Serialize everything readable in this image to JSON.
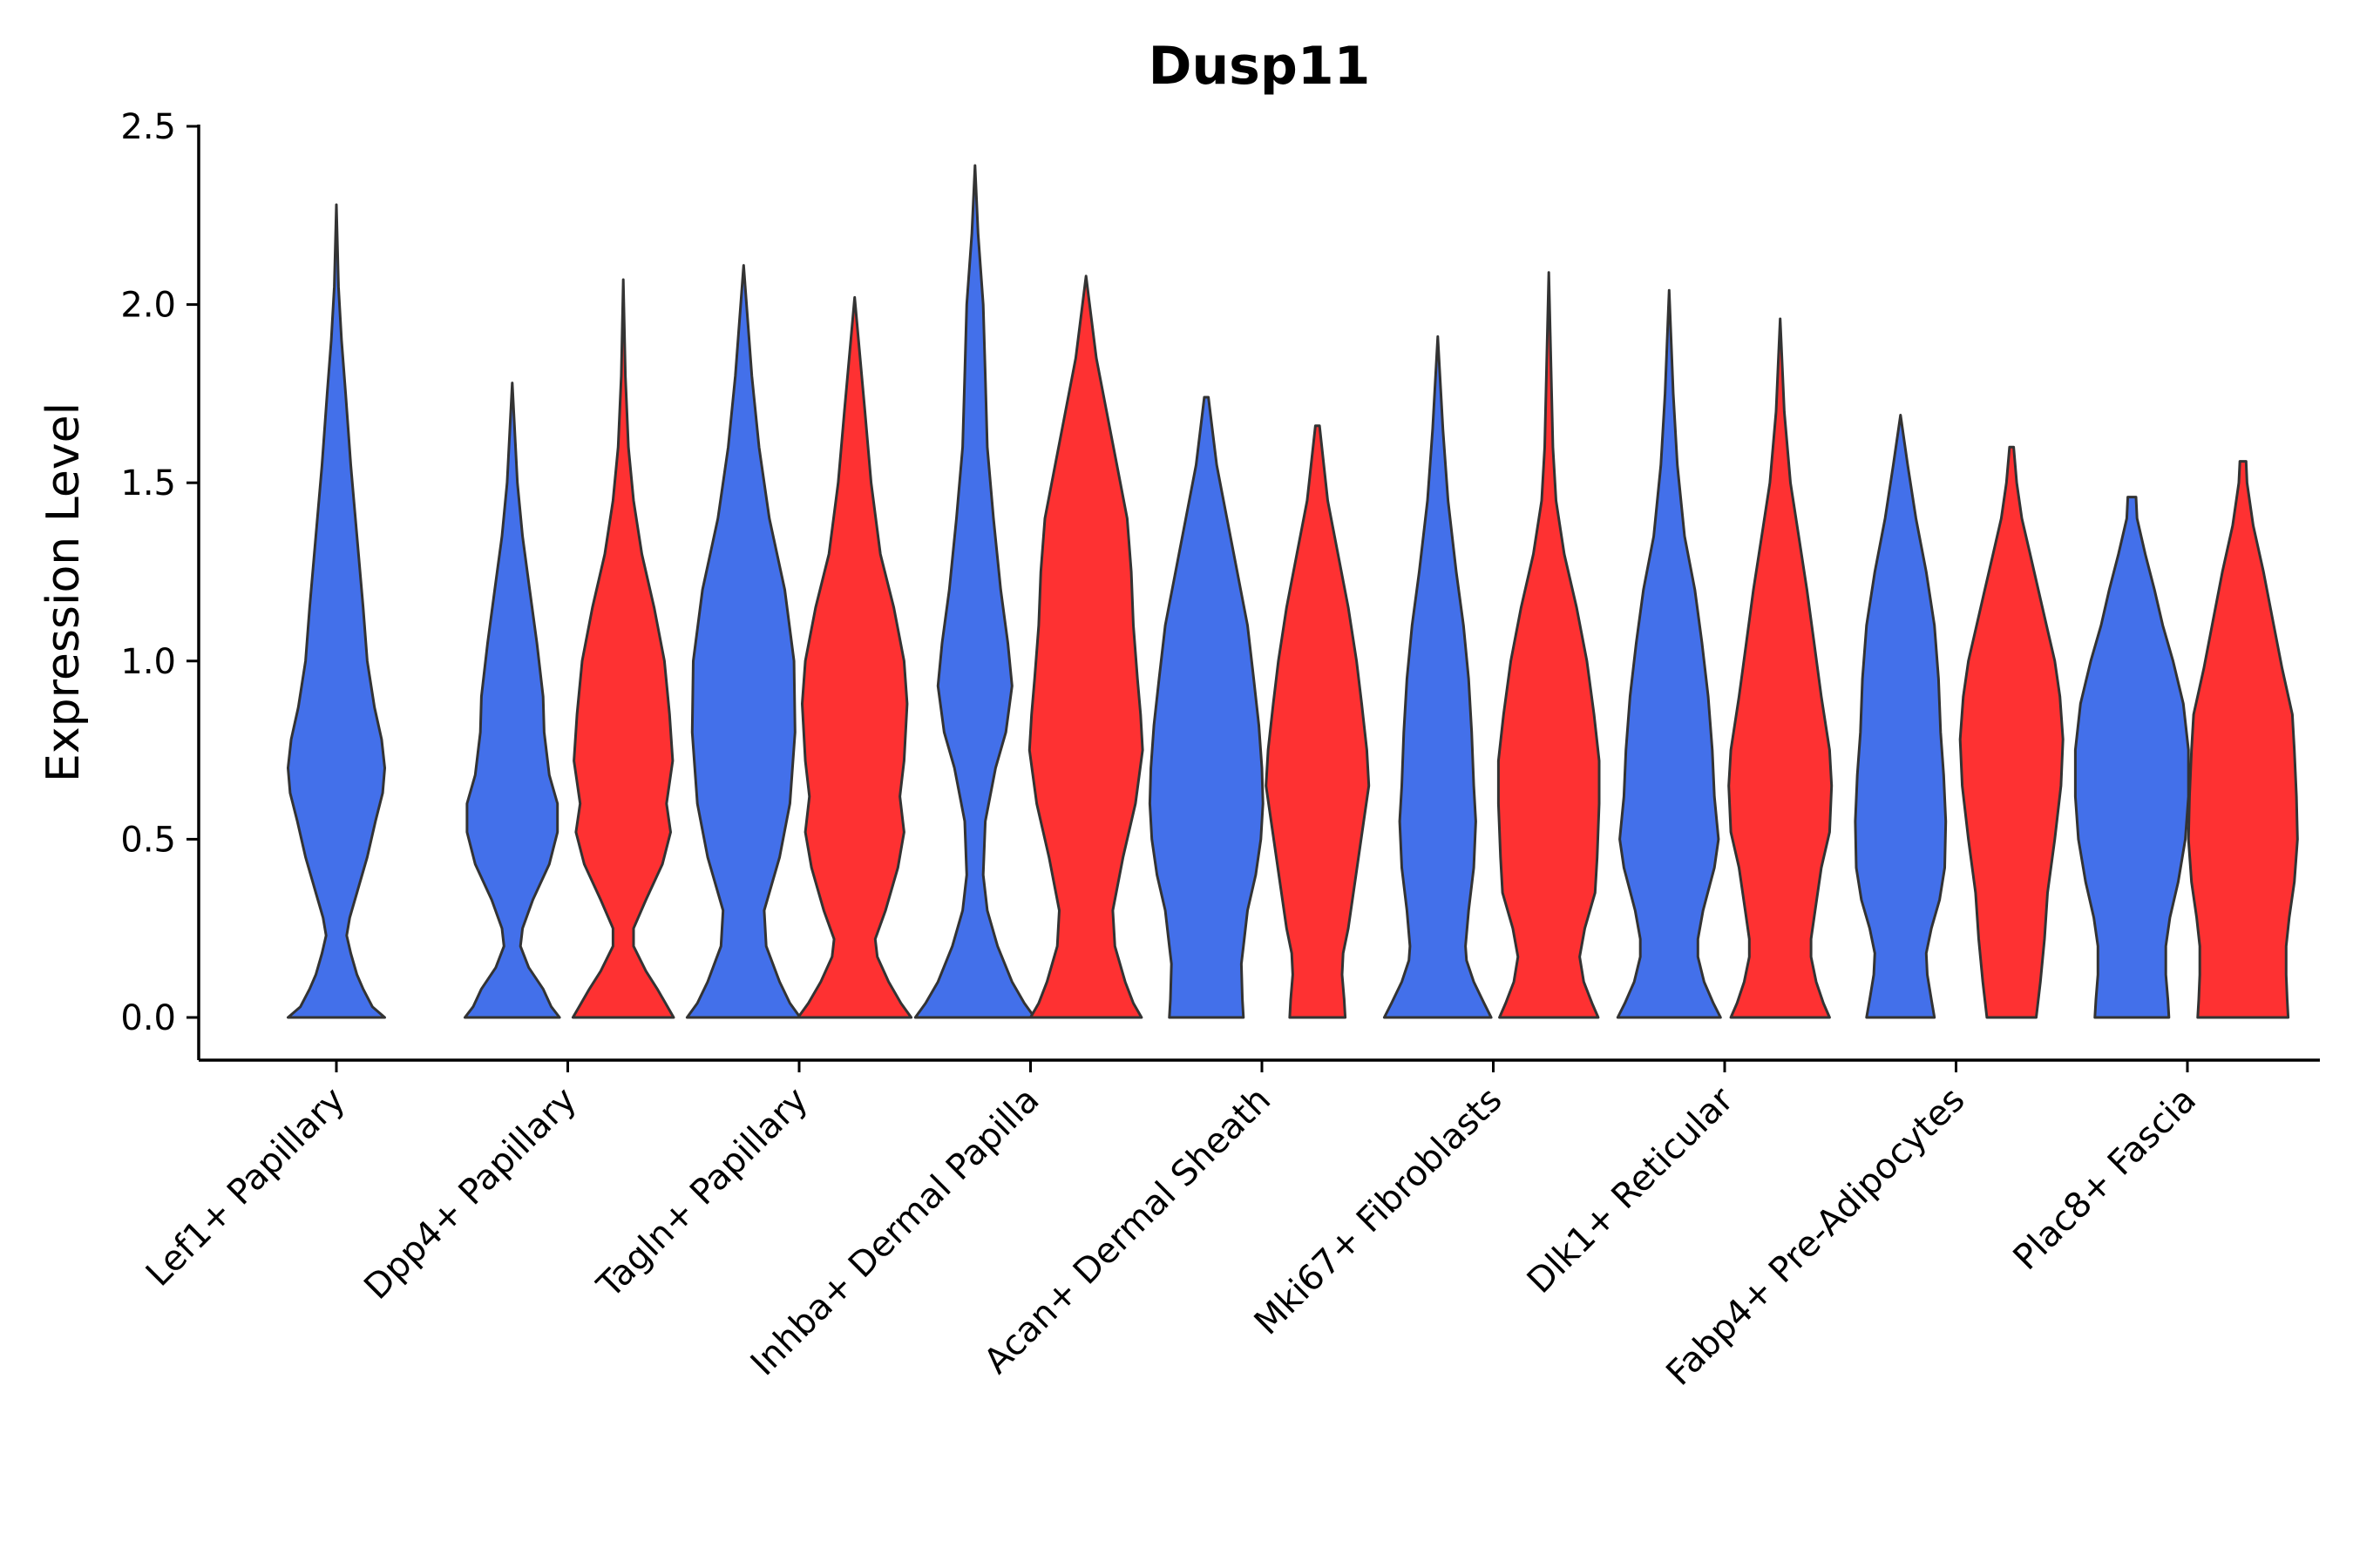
{
  "chart_data": {
    "type": "violin",
    "title": "Dusp11",
    "ylabel": "Expression Level",
    "xlabel": "",
    "ylim": [
      -0.12,
      2.5
    ],
    "yticks": [
      "0.0",
      "0.5",
      "1.0",
      "1.5",
      "2.0",
      "2.5"
    ],
    "categories": [
      "Lef1+ Papillary",
      "Dpp4+ Papillary",
      "Tagln+ Papillary",
      "Inhba+ Dermal Papilla",
      "Acan+ Dermal Sheath",
      "Mki67+ Fibroblasts",
      "Dlk1+ Reticular",
      "Fabp4+ Pre-Adipocytes",
      "Plac8+ Fascia"
    ],
    "colors": {
      "blue": "#4370ea",
      "red": "#fe3132"
    },
    "violins": [
      {
        "category": 0,
        "offset": 0,
        "color": "blue",
        "max": 2.28,
        "profile": [
          [
            0,
            0.47
          ],
          [
            0.03,
            0.35
          ],
          [
            0.08,
            0.26
          ],
          [
            0.12,
            0.2
          ],
          [
            0.18,
            0.14
          ],
          [
            0.23,
            0.1
          ],
          [
            0.28,
            0.13
          ],
          [
            0.35,
            0.2
          ],
          [
            0.45,
            0.3
          ],
          [
            0.55,
            0.38
          ],
          [
            0.63,
            0.45
          ],
          [
            0.7,
            0.47
          ],
          [
            0.78,
            0.44
          ],
          [
            0.87,
            0.37
          ],
          [
            1.0,
            0.3
          ],
          [
            1.15,
            0.26
          ],
          [
            1.35,
            0.2
          ],
          [
            1.55,
            0.14
          ],
          [
            1.75,
            0.09
          ],
          [
            1.9,
            0.05
          ],
          [
            2.05,
            0.02
          ],
          [
            2.28,
            0
          ]
        ]
      },
      {
        "category": 1,
        "offset": -0.24,
        "color": "blue",
        "max": 1.78,
        "profile": [
          [
            0,
            0.46
          ],
          [
            0.03,
            0.38
          ],
          [
            0.08,
            0.3
          ],
          [
            0.14,
            0.16
          ],
          [
            0.2,
            0.08
          ],
          [
            0.25,
            0.1
          ],
          [
            0.33,
            0.2
          ],
          [
            0.43,
            0.36
          ],
          [
            0.52,
            0.44
          ],
          [
            0.6,
            0.44
          ],
          [
            0.68,
            0.36
          ],
          [
            0.8,
            0.31
          ],
          [
            0.9,
            0.3
          ],
          [
            1.05,
            0.24
          ],
          [
            1.2,
            0.17
          ],
          [
            1.35,
            0.1
          ],
          [
            1.5,
            0.05
          ],
          [
            1.78,
            0
          ]
        ]
      },
      {
        "category": 1,
        "offset": 0.24,
        "color": "red",
        "max": 2.07,
        "profile": [
          [
            0,
            0.49
          ],
          [
            0.03,
            0.43
          ],
          [
            0.08,
            0.33
          ],
          [
            0.13,
            0.22
          ],
          [
            0.2,
            0.1
          ],
          [
            0.25,
            0.1
          ],
          [
            0.33,
            0.22
          ],
          [
            0.43,
            0.38
          ],
          [
            0.52,
            0.46
          ],
          [
            0.6,
            0.42
          ],
          [
            0.72,
            0.48
          ],
          [
            0.85,
            0.45
          ],
          [
            1.0,
            0.4
          ],
          [
            1.15,
            0.3
          ],
          [
            1.3,
            0.18
          ],
          [
            1.45,
            0.1
          ],
          [
            1.6,
            0.05
          ],
          [
            1.8,
            0.02
          ],
          [
            2.07,
            0
          ]
        ]
      },
      {
        "category": 2,
        "offset": -0.24,
        "color": "blue",
        "max": 2.11,
        "profile": [
          [
            0,
            0.55
          ],
          [
            0.04,
            0.45
          ],
          [
            0.1,
            0.35
          ],
          [
            0.2,
            0.22
          ],
          [
            0.3,
            0.2
          ],
          [
            0.45,
            0.35
          ],
          [
            0.6,
            0.45
          ],
          [
            0.8,
            0.5
          ],
          [
            1.0,
            0.49
          ],
          [
            1.2,
            0.4
          ],
          [
            1.4,
            0.25
          ],
          [
            1.6,
            0.15
          ],
          [
            1.8,
            0.08
          ],
          [
            2.11,
            0
          ]
        ]
      },
      {
        "category": 2,
        "offset": 0.24,
        "color": "red",
        "max": 2.02,
        "profile": [
          [
            0,
            0.55
          ],
          [
            0.04,
            0.45
          ],
          [
            0.1,
            0.33
          ],
          [
            0.17,
            0.22
          ],
          [
            0.22,
            0.2
          ],
          [
            0.3,
            0.3
          ],
          [
            0.42,
            0.42
          ],
          [
            0.52,
            0.48
          ],
          [
            0.62,
            0.44
          ],
          [
            0.72,
            0.48
          ],
          [
            0.88,
            0.51
          ],
          [
            1.0,
            0.48
          ],
          [
            1.15,
            0.38
          ],
          [
            1.3,
            0.25
          ],
          [
            1.5,
            0.16
          ],
          [
            1.7,
            0.1
          ],
          [
            2.02,
            0
          ]
        ]
      },
      {
        "category": 3,
        "offset": -0.24,
        "color": "blue",
        "max": 2.39,
        "profile": [
          [
            0,
            0.58
          ],
          [
            0.04,
            0.48
          ],
          [
            0.1,
            0.36
          ],
          [
            0.2,
            0.22
          ],
          [
            0.3,
            0.12
          ],
          [
            0.4,
            0.08
          ],
          [
            0.55,
            0.1
          ],
          [
            0.7,
            0.2
          ],
          [
            0.8,
            0.3
          ],
          [
            0.93,
            0.36
          ],
          [
            1.05,
            0.32
          ],
          [
            1.2,
            0.25
          ],
          [
            1.4,
            0.18
          ],
          [
            1.6,
            0.12
          ],
          [
            1.8,
            0.1
          ],
          [
            2.0,
            0.08
          ],
          [
            2.2,
            0.03
          ],
          [
            2.39,
            0
          ]
        ]
      },
      {
        "category": 3,
        "offset": 0.24,
        "color": "red",
        "max": 2.08,
        "profile": [
          [
            0,
            0.54
          ],
          [
            0.04,
            0.46
          ],
          [
            0.1,
            0.38
          ],
          [
            0.2,
            0.28
          ],
          [
            0.3,
            0.26
          ],
          [
            0.45,
            0.36
          ],
          [
            0.6,
            0.48
          ],
          [
            0.75,
            0.55
          ],
          [
            0.85,
            0.53
          ],
          [
            0.95,
            0.5
          ],
          [
            1.1,
            0.46
          ],
          [
            1.25,
            0.44
          ],
          [
            1.4,
            0.4
          ],
          [
            1.55,
            0.3
          ],
          [
            1.7,
            0.2
          ],
          [
            1.85,
            0.1
          ],
          [
            2.08,
            0
          ]
        ]
      },
      {
        "category": 4,
        "offset": -0.24,
        "color": "blue",
        "max": 1.74,
        "profile": [
          [
            0,
            0.36
          ],
          [
            0.05,
            0.35
          ],
          [
            0.15,
            0.34
          ],
          [
            0.2,
            0.36
          ],
          [
            0.3,
            0.4
          ],
          [
            0.4,
            0.48
          ],
          [
            0.5,
            0.53
          ],
          [
            0.6,
            0.55
          ],
          [
            0.7,
            0.54
          ],
          [
            0.82,
            0.51
          ],
          [
            0.95,
            0.46
          ],
          [
            1.1,
            0.4
          ],
          [
            1.25,
            0.3
          ],
          [
            1.4,
            0.2
          ],
          [
            1.55,
            0.1
          ],
          [
            1.74,
            0.02
          ]
        ]
      },
      {
        "category": 4,
        "offset": 0.24,
        "color": "red",
        "max": 1.66,
        "profile": [
          [
            0,
            0.27
          ],
          [
            0.05,
            0.26
          ],
          [
            0.12,
            0.24
          ],
          [
            0.18,
            0.25
          ],
          [
            0.25,
            0.3
          ],
          [
            0.35,
            0.35
          ],
          [
            0.45,
            0.4
          ],
          [
            0.55,
            0.45
          ],
          [
            0.65,
            0.5
          ],
          [
            0.75,
            0.48
          ],
          [
            0.88,
            0.43
          ],
          [
            1.0,
            0.38
          ],
          [
            1.15,
            0.3
          ],
          [
            1.3,
            0.2
          ],
          [
            1.45,
            0.1
          ],
          [
            1.66,
            0.02
          ]
        ]
      },
      {
        "category": 5,
        "offset": -0.24,
        "color": "blue",
        "max": 1.91,
        "profile": [
          [
            0,
            0.52
          ],
          [
            0.04,
            0.45
          ],
          [
            0.1,
            0.35
          ],
          [
            0.16,
            0.28
          ],
          [
            0.2,
            0.27
          ],
          [
            0.3,
            0.3
          ],
          [
            0.42,
            0.35
          ],
          [
            0.55,
            0.37
          ],
          [
            0.65,
            0.35
          ],
          [
            0.8,
            0.33
          ],
          [
            0.95,
            0.3
          ],
          [
            1.1,
            0.25
          ],
          [
            1.25,
            0.18
          ],
          [
            1.45,
            0.1
          ],
          [
            1.65,
            0.05
          ],
          [
            1.91,
            0
          ]
        ]
      },
      {
        "category": 5,
        "offset": 0.24,
        "color": "red",
        "max": 2.09,
        "profile": [
          [
            0,
            0.48
          ],
          [
            0.04,
            0.42
          ],
          [
            0.1,
            0.34
          ],
          [
            0.17,
            0.3
          ],
          [
            0.25,
            0.35
          ],
          [
            0.35,
            0.45
          ],
          [
            0.45,
            0.47
          ],
          [
            0.6,
            0.49
          ],
          [
            0.72,
            0.49
          ],
          [
            0.85,
            0.44
          ],
          [
            1.0,
            0.37
          ],
          [
            1.15,
            0.27
          ],
          [
            1.3,
            0.15
          ],
          [
            1.45,
            0.07
          ],
          [
            1.6,
            0.04
          ],
          [
            2.09,
            0
          ]
        ]
      },
      {
        "category": 6,
        "offset": -0.24,
        "color": "blue",
        "max": 2.04,
        "profile": [
          [
            0,
            0.5
          ],
          [
            0.04,
            0.43
          ],
          [
            0.1,
            0.34
          ],
          [
            0.17,
            0.28
          ],
          [
            0.22,
            0.28
          ],
          [
            0.3,
            0.33
          ],
          [
            0.42,
            0.44
          ],
          [
            0.5,
            0.48
          ],
          [
            0.62,
            0.44
          ],
          [
            0.75,
            0.42
          ],
          [
            0.9,
            0.38
          ],
          [
            1.05,
            0.32
          ],
          [
            1.2,
            0.25
          ],
          [
            1.35,
            0.15
          ],
          [
            1.55,
            0.08
          ],
          [
            1.75,
            0.04
          ],
          [
            2.04,
            0
          ]
        ]
      },
      {
        "category": 6,
        "offset": 0.24,
        "color": "red",
        "max": 1.96,
        "profile": [
          [
            0,
            0.48
          ],
          [
            0.04,
            0.42
          ],
          [
            0.1,
            0.35
          ],
          [
            0.17,
            0.3
          ],
          [
            0.22,
            0.3
          ],
          [
            0.3,
            0.34
          ],
          [
            0.42,
            0.4
          ],
          [
            0.52,
            0.48
          ],
          [
            0.65,
            0.5
          ],
          [
            0.75,
            0.48
          ],
          [
            0.9,
            0.4
          ],
          [
            1.05,
            0.33
          ],
          [
            1.2,
            0.26
          ],
          [
            1.35,
            0.18
          ],
          [
            1.5,
            0.1
          ],
          [
            1.7,
            0.04
          ],
          [
            1.96,
            0
          ]
        ]
      },
      {
        "category": 7,
        "offset": -0.24,
        "color": "blue",
        "max": 1.69,
        "profile": [
          [
            0,
            0.33
          ],
          [
            0.05,
            0.3
          ],
          [
            0.12,
            0.26
          ],
          [
            0.18,
            0.25
          ],
          [
            0.25,
            0.3
          ],
          [
            0.33,
            0.38
          ],
          [
            0.42,
            0.43
          ],
          [
            0.55,
            0.44
          ],
          [
            0.68,
            0.42
          ],
          [
            0.8,
            0.39
          ],
          [
            0.95,
            0.37
          ],
          [
            1.1,
            0.33
          ],
          [
            1.25,
            0.25
          ],
          [
            1.4,
            0.15
          ],
          [
            1.55,
            0.07
          ],
          [
            1.69,
            0
          ]
        ]
      },
      {
        "category": 7,
        "offset": 0.24,
        "color": "red",
        "max": 1.6,
        "profile": [
          [
            0,
            0.24
          ],
          [
            0.1,
            0.28
          ],
          [
            0.22,
            0.32
          ],
          [
            0.35,
            0.35
          ],
          [
            0.5,
            0.42
          ],
          [
            0.65,
            0.48
          ],
          [
            0.78,
            0.5
          ],
          [
            0.9,
            0.47
          ],
          [
            1.0,
            0.42
          ],
          [
            1.1,
            0.34
          ],
          [
            1.2,
            0.26
          ],
          [
            1.3,
            0.18
          ],
          [
            1.4,
            0.1
          ],
          [
            1.5,
            0.05
          ],
          [
            1.6,
            0.02
          ]
        ]
      },
      {
        "category": 8,
        "offset": -0.24,
        "color": "blue",
        "max": 1.46,
        "profile": [
          [
            0,
            0.36
          ],
          [
            0.05,
            0.35
          ],
          [
            0.12,
            0.33
          ],
          [
            0.2,
            0.33
          ],
          [
            0.28,
            0.37
          ],
          [
            0.38,
            0.45
          ],
          [
            0.5,
            0.52
          ],
          [
            0.62,
            0.55
          ],
          [
            0.75,
            0.55
          ],
          [
            0.88,
            0.5
          ],
          [
            1.0,
            0.4
          ],
          [
            1.1,
            0.3
          ],
          [
            1.2,
            0.22
          ],
          [
            1.3,
            0.13
          ],
          [
            1.4,
            0.05
          ],
          [
            1.46,
            0.04
          ]
        ]
      },
      {
        "category": 8,
        "offset": 0.24,
        "color": "red",
        "max": 1.56,
        "profile": [
          [
            0,
            0.44
          ],
          [
            0.05,
            0.43
          ],
          [
            0.12,
            0.42
          ],
          [
            0.2,
            0.42
          ],
          [
            0.28,
            0.45
          ],
          [
            0.38,
            0.5
          ],
          [
            0.5,
            0.53
          ],
          [
            0.62,
            0.52
          ],
          [
            0.75,
            0.5
          ],
          [
            0.85,
            0.48
          ],
          [
            0.98,
            0.38
          ],
          [
            1.1,
            0.3
          ],
          [
            1.25,
            0.2
          ],
          [
            1.38,
            0.1
          ],
          [
            1.5,
            0.04
          ],
          [
            1.56,
            0.03
          ]
        ]
      }
    ]
  }
}
